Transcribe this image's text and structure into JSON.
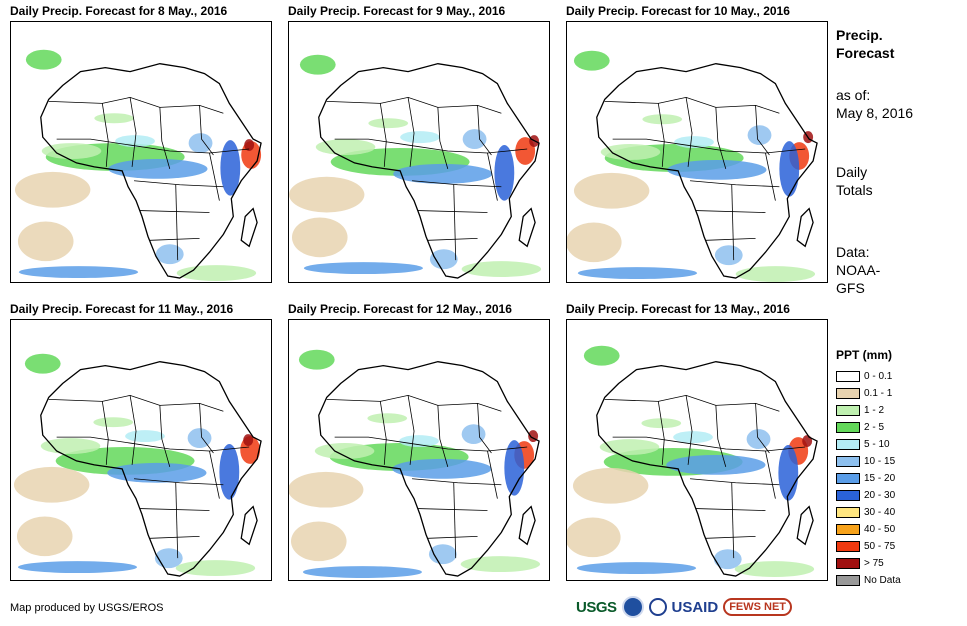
{
  "panels": [
    {
      "title": "Daily Precip. Forecast for 8 May., 2016"
    },
    {
      "title": "Daily Precip. Forecast for 9 May., 2016"
    },
    {
      "title": "Daily Precip. Forecast for 10 May., 2016"
    },
    {
      "title": "Daily Precip. Forecast for 11 May., 2016"
    },
    {
      "title": "Daily Precip. Forecast for 12 May., 2016"
    },
    {
      "title": "Daily Precip. Forecast for 13 May., 2016"
    }
  ],
  "sidebar": {
    "heading_line1": "Precip.",
    "heading_line2": "Forecast",
    "asof_label": "as of:",
    "asof_date": "May 8, 2016",
    "totals_line1": "Daily",
    "totals_line2": "Totals",
    "data_label": "Data:",
    "data_source_line1": "NOAA-",
    "data_source_line2": "GFS"
  },
  "legend": {
    "title": "PPT (mm)",
    "items": [
      {
        "label": "0 - 0.1",
        "color": "#ffffff"
      },
      {
        "label": "0.1 - 1",
        "color": "#e8d3b0"
      },
      {
        "label": "1 - 2",
        "color": "#bff0b0"
      },
      {
        "label": "2 - 5",
        "color": "#63d85a"
      },
      {
        "label": "5 - 10",
        "color": "#b3ecf5"
      },
      {
        "label": "10 - 15",
        "color": "#8ec0ee"
      },
      {
        "label": "15 - 20",
        "color": "#5a9de8"
      },
      {
        "label": "20 - 30",
        "color": "#2a62d8"
      },
      {
        "label": "30 - 40",
        "color": "#ffe680"
      },
      {
        "label": "40 - 50",
        "color": "#f7a21a"
      },
      {
        "label": "50 - 75",
        "color": "#f03a10"
      },
      {
        "label": "> 75",
        "color": "#a01010"
      },
      {
        "label": "No Data",
        "color": "#999999"
      }
    ]
  },
  "footer": {
    "credit": "Map produced by USGS/EROS",
    "logo_usgs": "USGS",
    "logo_usaid": "USAID",
    "logo_fews": "FEWS NET"
  }
}
